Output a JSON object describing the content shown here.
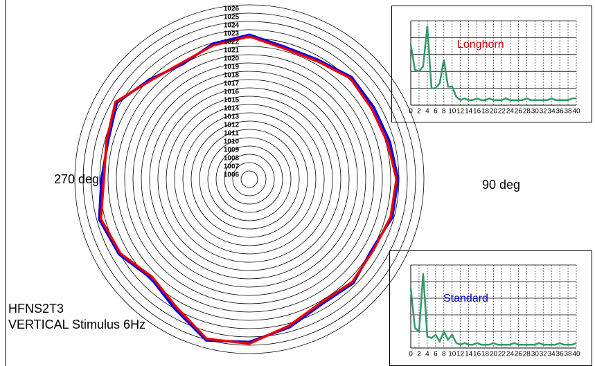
{
  "chart_data": [
    {
      "type": "polar",
      "title_lines": [
        "HFNS2T3",
        "VERTICAL Stimulus 6Hz"
      ],
      "annotations": [
        "270 deg",
        "90 deg"
      ],
      "theta": [
        0,
        15,
        30,
        45,
        60,
        75,
        90,
        105,
        120,
        135,
        150,
        165,
        180,
        195,
        210,
        225,
        240,
        255,
        270,
        285,
        300,
        315,
        330,
        345
      ],
      "rlim": [
        1005,
        1026
      ],
      "rticks": [
        1006,
        1007,
        1008,
        1009,
        1010,
        1011,
        1012,
        1013,
        1014,
        1015,
        1016,
        1017,
        1018,
        1019,
        1020,
        1021,
        1022,
        1023,
        1024,
        1025,
        1026
      ],
      "series": [
        {
          "name": "Standard",
          "color": "#0000ee",
          "values": [
            1022.4,
            1021.5,
            1021.6,
            1022.4,
            1022.3,
            1022.5,
            1022.9,
            1022.8,
            1022.0,
            1022.7,
            1022.4,
            1023.5,
            1024.6,
            1025.1,
            1023.0,
            1021.8,
            1023.1,
            1023.7,
            1022.8,
            1022.6,
            1023.4,
            1022.0,
            1021.0,
            1021.9
          ]
        },
        {
          "name": "Longhorn",
          "color": "#ee0000",
          "values": [
            1022.2,
            1021.3,
            1021.4,
            1022.2,
            1022.0,
            1022.2,
            1022.7,
            1022.6,
            1022.2,
            1022.5,
            1022.2,
            1023.3,
            1024.8,
            1024.9,
            1022.7,
            1021.6,
            1022.9,
            1023.5,
            1022.5,
            1022.8,
            1023.6,
            1021.8,
            1021.2,
            1021.7
          ]
        }
      ]
    },
    {
      "type": "line",
      "title": "Longhorn",
      "title_color": "#cc0000",
      "color": "#339966",
      "x": [
        0,
        1,
        2,
        3,
        4,
        5,
        6,
        7,
        8,
        9,
        10,
        11,
        12,
        13,
        14,
        15,
        16,
        17,
        18,
        19,
        20,
        21,
        22,
        23,
        24,
        25,
        26,
        27,
        28,
        29,
        30,
        31,
        32,
        33,
        34,
        35,
        36,
        37,
        38,
        39,
        40
      ],
      "values": [
        3.6,
        2.1,
        2.0,
        2.3,
        4.7,
        1.0,
        1.0,
        1.3,
        2.7,
        1.1,
        1.1,
        0.5,
        0.3,
        0.4,
        0.3,
        0.3,
        0.4,
        0.3,
        0.3,
        0.4,
        0.3,
        0.3,
        0.3,
        0.4,
        0.3,
        0.3,
        0.3,
        0.3,
        0.4,
        0.3,
        0.3,
        0.3,
        0.3,
        0.3,
        0.4,
        0.3,
        0.3,
        0.3,
        0.3,
        0.4,
        0.4
      ],
      "xlim": [
        0,
        40
      ],
      "xticks": [
        0,
        2,
        4,
        6,
        8,
        10,
        12,
        14,
        16,
        18,
        20,
        22,
        24,
        26,
        28,
        30,
        32,
        34,
        36,
        38,
        40
      ],
      "ylim": [
        0,
        5
      ]
    },
    {
      "type": "line",
      "title": "Standard",
      "title_color": "#0000cc",
      "color": "#339966",
      "x": [
        0,
        1,
        2,
        3,
        4,
        5,
        6,
        7,
        8,
        9,
        10,
        11,
        12,
        13,
        14,
        15,
        16,
        17,
        18,
        19,
        20,
        21,
        22,
        23,
        24,
        25,
        26,
        27,
        28,
        29,
        30,
        31,
        32,
        33,
        34,
        35,
        36,
        37,
        38,
        39,
        40
      ],
      "values": [
        3.6,
        1.2,
        1.0,
        4.5,
        0.7,
        0.6,
        0.8,
        0.4,
        1.0,
        0.5,
        0.8,
        0.3,
        0.2,
        0.3,
        0.2,
        0.2,
        0.3,
        0.2,
        0.2,
        0.2,
        0.3,
        0.2,
        0.2,
        0.2,
        0.2,
        0.3,
        0.2,
        0.2,
        0.2,
        0.2,
        0.2,
        0.3,
        0.2,
        0.2,
        0.2,
        0.2,
        0.3,
        0.2,
        0.2,
        0.2,
        0.3
      ],
      "xlim": [
        0,
        40
      ],
      "xticks": [
        0,
        2,
        4,
        6,
        8,
        10,
        12,
        14,
        16,
        18,
        20,
        22,
        24,
        26,
        28,
        30,
        32,
        34,
        36,
        38,
        40
      ],
      "ylim": [
        0,
        5
      ]
    }
  ]
}
